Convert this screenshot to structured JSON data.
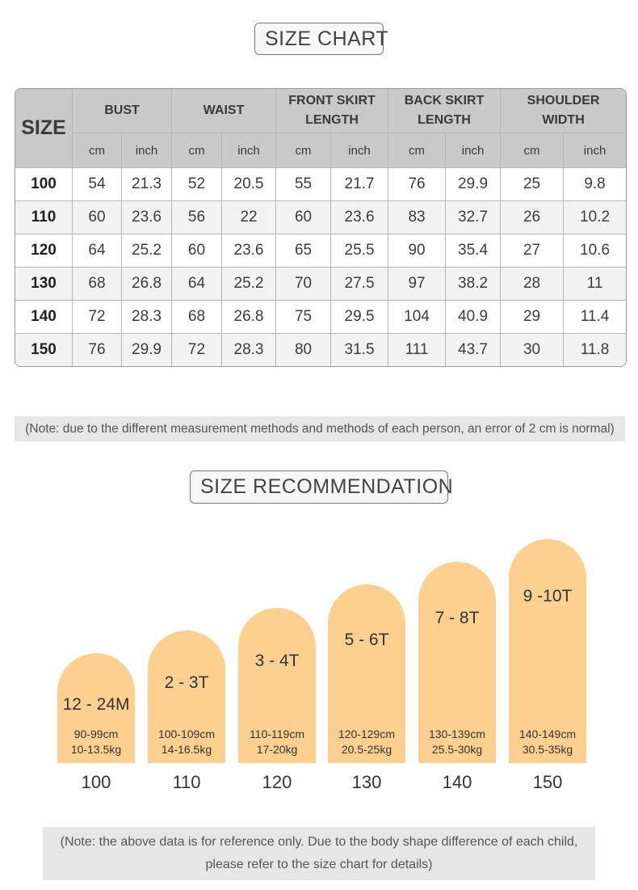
{
  "size_chart_title": "SIZE CHART",
  "table": {
    "size_header": "SIZE",
    "groups": [
      "BUST",
      "WAIST",
      "FRONT SKIRT\nLENGTH",
      "BACK SKIRT\nLENGTH",
      "SHOULDER\nWIDTH"
    ],
    "units": [
      "cm",
      "inch",
      "cm",
      "inch",
      "cm",
      "inch",
      "cm",
      "inch",
      "cm",
      "inch"
    ],
    "rows": [
      [
        "100",
        "54",
        "21.3",
        "52",
        "20.5",
        "55",
        "21.7",
        "76",
        "29.9",
        "25",
        "9.8"
      ],
      [
        "110",
        "60",
        "23.6",
        "56",
        "22",
        "60",
        "23.6",
        "83",
        "32.7",
        "26",
        "10.2"
      ],
      [
        "120",
        "64",
        "25.2",
        "60",
        "23.6",
        "65",
        "25.5",
        "90",
        "35.4",
        "27",
        "10.6"
      ],
      [
        "130",
        "68",
        "26.8",
        "64",
        "25.2",
        "70",
        "27.5",
        "97",
        "38.2",
        "28",
        "11"
      ],
      [
        "140",
        "72",
        "28.3",
        "68",
        "26.8",
        "75",
        "29.5",
        "104",
        "40.9",
        "29",
        "11.4"
      ],
      [
        "150",
        "76",
        "29.9",
        "72",
        "28.3",
        "80",
        "31.5",
        "111",
        "43.7",
        "30",
        "11.8"
      ]
    ]
  },
  "note1": "(Note: due to the different measurement methods and methods of each person, an error of 2 cm is normal)",
  "size_recommendation_title": "SIZE RECOMMENDATION",
  "chart_data": {
    "type": "bar",
    "categories": [
      "100",
      "110",
      "120",
      "130",
      "140",
      "150"
    ],
    "age_labels": [
      "12 - 24M",
      "2 - 3T",
      "3 - 4T",
      "5 - 6T",
      "7 - 8T",
      "9 -10T"
    ],
    "height_ranges": [
      "90-99cm",
      "100-109cm",
      "110-119cm",
      "120-129cm",
      "130-139cm",
      "140-149cm"
    ],
    "weight_ranges": [
      "10-13.5kg",
      "14-16.5kg",
      "17-20kg",
      "20.5-25kg",
      "25.5-30kg",
      "30.5-35kg"
    ],
    "values": [
      100,
      110,
      120,
      130,
      140,
      150
    ],
    "bar_color": "#fdd08f"
  },
  "note2": "(Note: the above data is for reference only. Due to the body shape difference of each child, please refer to the size chart for details)"
}
